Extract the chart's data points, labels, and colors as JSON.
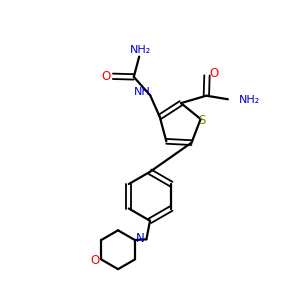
{
  "bg_color": "#ffffff",
  "bond_color": "#000000",
  "S_color": "#808000",
  "N_color": "#0000cd",
  "O_color": "#ff0000",
  "figsize": [
    3.0,
    3.0
  ],
  "dpi": 100,
  "xlim": [
    0,
    10
  ],
  "ylim": [
    0,
    10
  ]
}
